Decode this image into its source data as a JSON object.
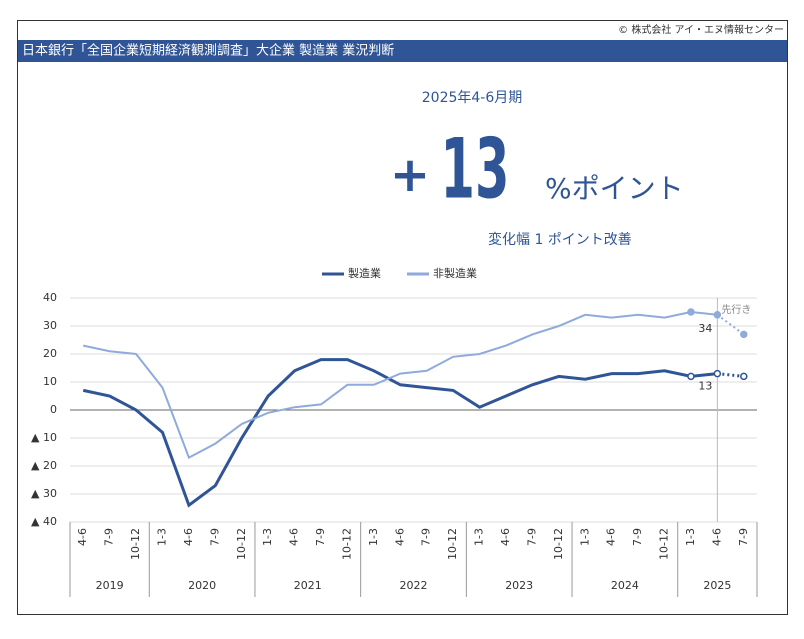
{
  "copyright": "© 株式会社 アイ・エヌ情報センター",
  "headline": {
    "period": "2025年4-6月期",
    "sign": "+",
    "value": 13,
    "unit": "%ポイント",
    "change": "変化幅 1 ポイント改善"
  },
  "chart_data": {
    "type": "line",
    "title": "日本銀行「全国企業短期経済観測調査」大企業 製造業 業況判断",
    "categories": [
      "4-6",
      "7-9",
      "10-12",
      "1-3",
      "4-6",
      "7-9",
      "10-12",
      "1-3",
      "4-6",
      "7-9",
      "10-12",
      "1-3",
      "4-6",
      "7-9",
      "10-12",
      "1-3",
      "4-6",
      "7-9",
      "10-12",
      "1-3",
      "4-6",
      "7-9",
      "10-12",
      "1-3",
      "4-6",
      "7-9"
    ],
    "groups": [
      {
        "label": "2019",
        "count": 3
      },
      {
        "label": "2020",
        "count": 4
      },
      {
        "label": "2021",
        "count": 4
      },
      {
        "label": "2022",
        "count": 4
      },
      {
        "label": "2023",
        "count": 4
      },
      {
        "label": "2024",
        "count": 4
      },
      {
        "label": "2025",
        "count": 3
      }
    ],
    "series": [
      {
        "name": "製造業",
        "color": "#2f5597",
        "values": [
          7,
          5,
          0,
          -8,
          -34,
          -27,
          -10,
          5,
          14,
          18,
          18,
          14,
          9,
          8,
          7,
          1,
          5,
          9,
          12,
          11,
          13,
          13,
          14,
          12,
          13,
          12
        ]
      },
      {
        "name": "非製造業",
        "color": "#8faadc",
        "values": [
          23,
          21,
          20,
          8,
          -17,
          -12,
          -5,
          -1,
          1,
          2,
          9,
          9,
          13,
          14,
          19,
          20,
          23,
          27,
          30,
          34,
          33,
          34,
          33,
          35,
          34,
          27
        ]
      }
    ],
    "forecast_from_index": 24,
    "marker_indices": [
      23,
      24,
      25
    ],
    "data_label_index": 24,
    "forecast_label": "先行き",
    "ylim": [
      -40,
      40
    ],
    "yticks": [
      {
        "value": -40,
        "label": "▲ 40"
      },
      {
        "value": -30,
        "label": "▲ 30"
      },
      {
        "value": -20,
        "label": "▲ 20"
      },
      {
        "value": -10,
        "label": "▲ 10"
      },
      0,
      10,
      20,
      30,
      40
    ],
    "grid": true,
    "legend": "top"
  }
}
